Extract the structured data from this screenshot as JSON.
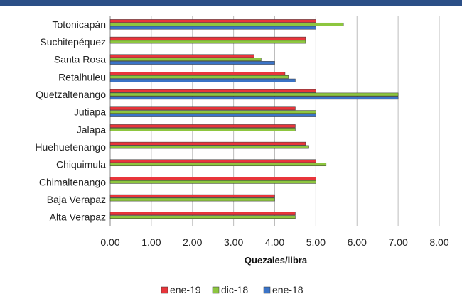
{
  "chart_data": {
    "type": "bar",
    "orientation": "horizontal",
    "categories": [
      "Totonicapán",
      "Suchitepéquez",
      "Santa Rosa",
      "Retalhuleu",
      "Quetzaltenango",
      "Jutiapa",
      "Jalapa",
      "Huehuetenango",
      "Chiquimula",
      "Chimaltenango",
      "Baja Verapaz",
      "Alta Verapaz"
    ],
    "series": [
      {
        "name": "ene-19",
        "color": "#e8353b",
        "values": [
          5.0,
          4.75,
          3.5,
          4.25,
          5.0,
          4.5,
          4.5,
          4.75,
          5.0,
          5.0,
          4.0,
          4.5
        ]
      },
      {
        "name": "dic-18",
        "color": "#8dc63f",
        "values": [
          5.67,
          4.75,
          3.67,
          4.33,
          7.0,
          5.0,
          4.5,
          4.83,
          5.25,
          5.0,
          4.0,
          4.5
        ]
      },
      {
        "name": "ene-18",
        "color": "#3b74c8",
        "values": [
          5.0,
          null,
          4.0,
          4.5,
          7.0,
          5.0,
          null,
          null,
          null,
          null,
          null,
          null
        ]
      }
    ],
    "xlim": [
      0,
      8
    ],
    "xticks": [
      "0.00",
      "1.00",
      "2.00",
      "3.00",
      "4.00",
      "5.00",
      "6.00",
      "7.00",
      "8.00"
    ],
    "xlabel": "Quezales/libra",
    "grid": "vertical",
    "legend": "bottom"
  }
}
